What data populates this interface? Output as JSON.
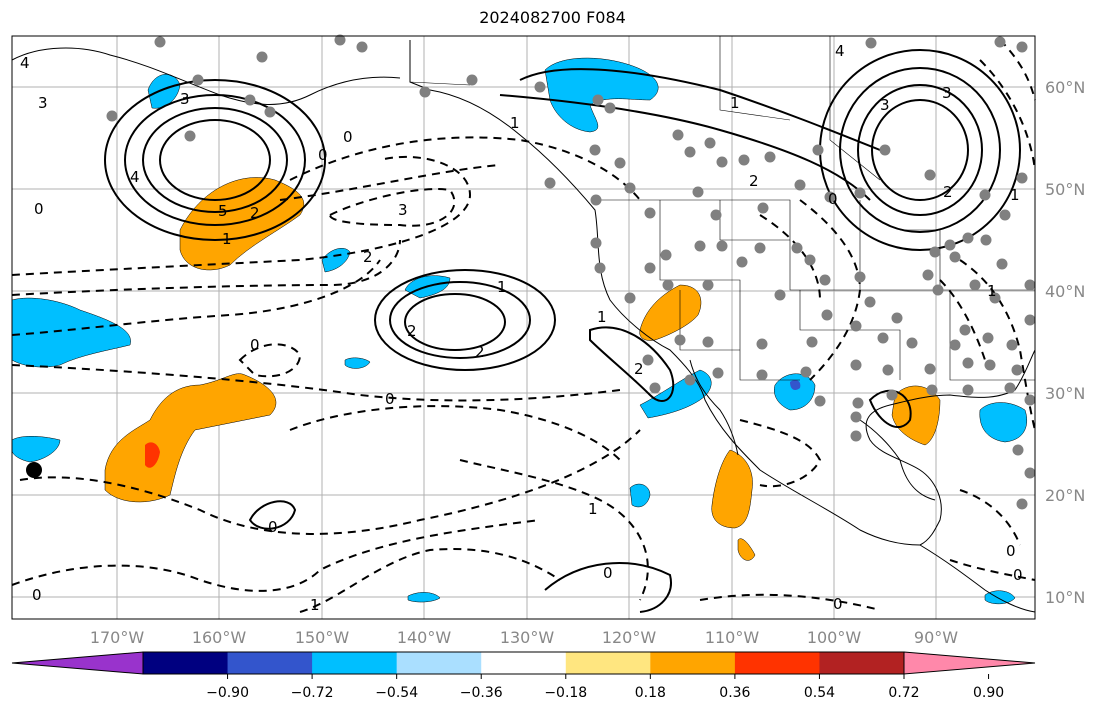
{
  "title": "2024082700 F084",
  "map": {
    "lon_ticks": [
      "170°W",
      "160°W",
      "150°W",
      "140°W",
      "130°W",
      "120°W",
      "110°W",
      "100°W",
      "90°W"
    ],
    "lat_ticks": [
      "60°N",
      "50°N",
      "40°N",
      "30°N",
      "20°N",
      "10°N"
    ],
    "contour_labels": [
      "4",
      "3",
      "3",
      "4",
      "5",
      "2",
      "1",
      "0",
      "0",
      "0",
      "3",
      "2",
      "1",
      "2",
      "2",
      "1",
      "0",
      "0",
      "1",
      "0",
      "0",
      "0",
      "1",
      "2",
      "4",
      "3",
      "3",
      "2",
      "1",
      "0",
      "1",
      "2",
      "1",
      "0",
      "0",
      "0",
      "1"
    ]
  },
  "colorbar": {
    "colors": [
      "#9933cc",
      "#000080",
      "#3355cc",
      "#00bfff",
      "#aadfff",
      "#ffffff",
      "#ffe680",
      "#ffa500",
      "#ff3300",
      "#b22222",
      "#ff88aa"
    ],
    "ticks": [
      "−0.90",
      "−0.72",
      "−0.54",
      "−0.36",
      "−0.18",
      "0.18",
      "0.36",
      "0.54",
      "0.72",
      "0.90"
    ]
  }
}
